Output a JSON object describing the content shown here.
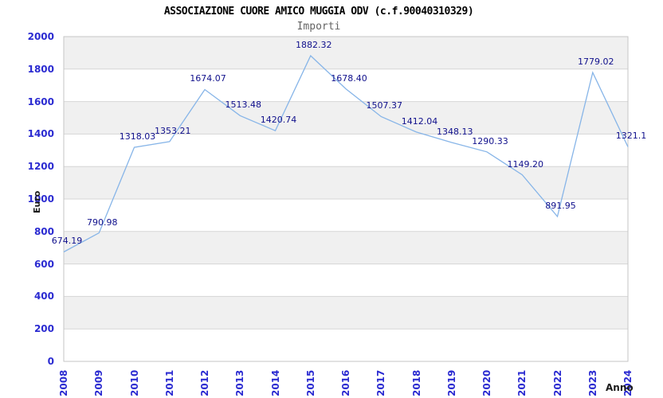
{
  "header": {
    "title": "ASSOCIAZIONE CUORE AMICO MUGGIA ODV (c.f.90040310329)",
    "subtitle": "Importi"
  },
  "chart_data": {
    "type": "line",
    "title": "ASSOCIAZIONE CUORE AMICO MUGGIA ODV (c.f.90040310329)",
    "subtitle": "Importi",
    "xlabel": "Anno",
    "ylabel": "Euro",
    "categories": [
      "2008",
      "2009",
      "2010",
      "2011",
      "2012",
      "2013",
      "2014",
      "2015",
      "2016",
      "2017",
      "2018",
      "2019",
      "2020",
      "2021",
      "2022",
      "2023",
      "2024"
    ],
    "values": [
      674.19,
      790.98,
      1318.03,
      1353.21,
      1674.07,
      1513.48,
      1420.74,
      1882.32,
      1678.4,
      1507.37,
      1412.04,
      1348.13,
      1290.33,
      1149.2,
      891.95,
      1779.02,
      1321.1
    ],
    "point_labels": [
      "674.19",
      "790.98",
      "1318.03",
      "1353.21",
      "1674.07",
      "1513.48",
      "1420.74",
      "1882.32",
      "1678.40",
      "1507.37",
      "1412.04",
      "1348.13",
      "1290.33",
      "1149.20",
      "891.95",
      "1779.02",
      "1321.1"
    ],
    "yticks": [
      "0",
      "200",
      "400",
      "600",
      "800",
      "1000",
      "1200",
      "1400",
      "1600",
      "1800",
      "2000"
    ],
    "ylim": [
      0,
      2000
    ],
    "ytick_step": 200,
    "grid": "horizontal gridlines with alternating shaded bands",
    "legend": "none",
    "colors": {
      "line": "#87b5e8",
      "point_label": "#10108c",
      "tick_label": "#2b2bd1",
      "band": "#f0f0f0",
      "grid_line": "#d6d6d6",
      "plot_border": "#c6c6c6",
      "background": "#ffffff"
    }
  }
}
